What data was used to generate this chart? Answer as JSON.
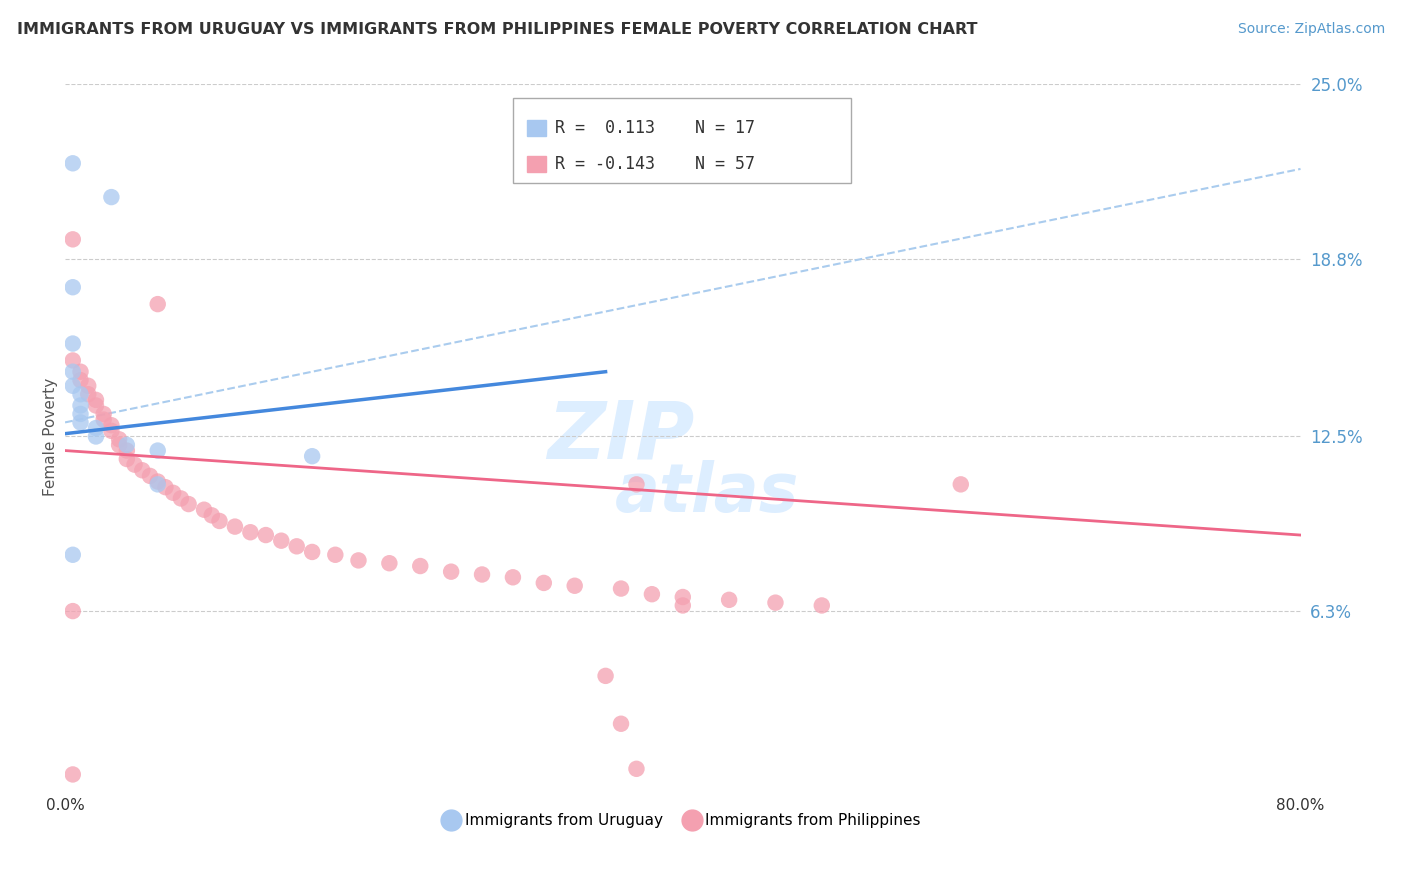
{
  "title": "IMMIGRANTS FROM URUGUAY VS IMMIGRANTS FROM PHILIPPINES FEMALE POVERTY CORRELATION CHART",
  "source": "Source: ZipAtlas.com",
  "ylabel": "Female Poverty",
  "xlim": [
    0.0,
    0.8
  ],
  "ylim": [
    0.0,
    0.25
  ],
  "ytick_values": [
    0.063,
    0.125,
    0.188,
    0.25
  ],
  "ytick_labels": [
    "6.3%",
    "12.5%",
    "18.8%",
    "25.0%"
  ],
  "uruguay_color": "#a8c8f0",
  "philippines_color": "#f4a0b0",
  "uruguay_line_color": "#4488dd",
  "philippines_line_color": "#ee6688",
  "dash_line_color": "#aaccee",
  "background_color": "#ffffff",
  "legend_r_uruguay": "R =  0.113",
  "legend_n_uruguay": "N = 17",
  "legend_r_philippines": "R = -0.143",
  "legend_n_philippines": "N = 57",
  "uruguay_points": [
    [
      0.005,
      0.222
    ],
    [
      0.03,
      0.21
    ],
    [
      0.005,
      0.178
    ],
    [
      0.005,
      0.158
    ],
    [
      0.005,
      0.148
    ],
    [
      0.005,
      0.143
    ],
    [
      0.01,
      0.14
    ],
    [
      0.01,
      0.136
    ],
    [
      0.01,
      0.133
    ],
    [
      0.01,
      0.13
    ],
    [
      0.02,
      0.128
    ],
    [
      0.02,
      0.125
    ],
    [
      0.04,
      0.122
    ],
    [
      0.06,
      0.12
    ],
    [
      0.06,
      0.108
    ],
    [
      0.16,
      0.118
    ],
    [
      0.005,
      0.083
    ]
  ],
  "philippines_points": [
    [
      0.005,
      0.195
    ],
    [
      0.06,
      0.172
    ],
    [
      0.005,
      0.152
    ],
    [
      0.01,
      0.148
    ],
    [
      0.01,
      0.145
    ],
    [
      0.015,
      0.143
    ],
    [
      0.015,
      0.14
    ],
    [
      0.02,
      0.138
    ],
    [
      0.02,
      0.136
    ],
    [
      0.025,
      0.133
    ],
    [
      0.025,
      0.131
    ],
    [
      0.03,
      0.129
    ],
    [
      0.03,
      0.127
    ],
    [
      0.035,
      0.124
    ],
    [
      0.035,
      0.122
    ],
    [
      0.04,
      0.12
    ],
    [
      0.04,
      0.117
    ],
    [
      0.045,
      0.115
    ],
    [
      0.05,
      0.113
    ],
    [
      0.055,
      0.111
    ],
    [
      0.06,
      0.109
    ],
    [
      0.065,
      0.107
    ],
    [
      0.07,
      0.105
    ],
    [
      0.075,
      0.103
    ],
    [
      0.08,
      0.101
    ],
    [
      0.09,
      0.099
    ],
    [
      0.095,
      0.097
    ],
    [
      0.1,
      0.095
    ],
    [
      0.11,
      0.093
    ],
    [
      0.12,
      0.091
    ],
    [
      0.13,
      0.09
    ],
    [
      0.14,
      0.088
    ],
    [
      0.15,
      0.086
    ],
    [
      0.16,
      0.084
    ],
    [
      0.175,
      0.083
    ],
    [
      0.19,
      0.081
    ],
    [
      0.21,
      0.08
    ],
    [
      0.23,
      0.079
    ],
    [
      0.25,
      0.077
    ],
    [
      0.27,
      0.076
    ],
    [
      0.29,
      0.075
    ],
    [
      0.31,
      0.073
    ],
    [
      0.33,
      0.072
    ],
    [
      0.36,
      0.071
    ],
    [
      0.38,
      0.069
    ],
    [
      0.4,
      0.068
    ],
    [
      0.43,
      0.067
    ],
    [
      0.46,
      0.066
    ],
    [
      0.49,
      0.065
    ],
    [
      0.37,
      0.108
    ],
    [
      0.58,
      0.108
    ],
    [
      0.005,
      0.063
    ],
    [
      0.35,
      0.04
    ],
    [
      0.36,
      0.023
    ],
    [
      0.37,
      0.007
    ],
    [
      0.005,
      0.005
    ],
    [
      0.4,
      0.065
    ]
  ],
  "uruguay_line": {
    "x0": 0.0,
    "y0": 0.126,
    "x1": 0.35,
    "y1": 0.148
  },
  "philippines_line": {
    "x0": 0.0,
    "y0": 0.12,
    "x1": 0.8,
    "y1": 0.09
  },
  "dash_line": {
    "x0": 0.0,
    "y0": 0.13,
    "x1": 0.8,
    "y1": 0.22
  }
}
